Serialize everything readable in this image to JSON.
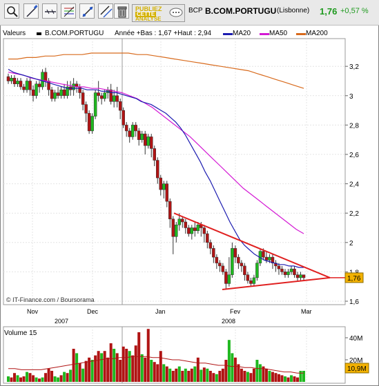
{
  "toolbar": {
    "publiez_line1": "PUBLIEZ",
    "publiez_line2": "CETTE",
    "publiez_line3": "ANALYSE"
  },
  "header": {
    "ticker": "BCP",
    "name": "B.COM.PORTUGU",
    "exchange": "(Lisbonne)",
    "price": "1,76",
    "change": "+0,57 %"
  },
  "legend": {
    "label": "Valeurs",
    "series": "B.COM.PORTUGU",
    "range": "Année +Bas : 1,67 +Haut : 2,94",
    "ma20": "MA20",
    "ma50": "MA50",
    "ma200": "MA200"
  },
  "colors": {
    "up": "#1fb81f",
    "down": "#b01414",
    "ma20": "#1c1cb0",
    "ma50": "#d419d4",
    "ma200": "#d86a1c",
    "trend": "#e02020",
    "price_tag": "#f3b200"
  },
  "copyright": "© IT-Finance.com / Boursorama",
  "price_tag": "1,76",
  "volume": {
    "label": "Volume 15",
    "tag": "10,9M",
    "ticks": [
      "40M",
      "20M"
    ]
  },
  "chart_data": {
    "type": "candlestick",
    "title": "B.COM.PORTUGU",
    "ylim": [
      1.6,
      3.35
    ],
    "yticks": [
      "3,2",
      "3",
      "2,8",
      "2,6",
      "2,4",
      "2,2",
      "2",
      "1,8",
      "1,6"
    ],
    "ytick_values": [
      3.2,
      3.0,
      2.8,
      2.6,
      2.4,
      2.2,
      2.0,
      1.8,
      1.6
    ],
    "xticks": [
      "Nov",
      "Dec",
      "Jan",
      "Fev",
      "Mar"
    ],
    "xticks_year": [
      "2007",
      "2008"
    ],
    "candles": [
      [
        3.13,
        3.1,
        3.15,
        3.08
      ],
      [
        3.1,
        3.12,
        3.14,
        3.08
      ],
      [
        3.12,
        3.08,
        3.14,
        3.06
      ],
      [
        3.08,
        3.1,
        3.12,
        3.06
      ],
      [
        3.1,
        3.06,
        3.12,
        3.04
      ],
      [
        3.06,
        3.04,
        3.08,
        3.02
      ],
      [
        3.04,
        3.1,
        3.12,
        3.02
      ],
      [
        3.1,
        3.04,
        3.12,
        3.0
      ],
      [
        3.04,
        3.0,
        3.07,
        2.96
      ],
      [
        3.0,
        3.08,
        3.1,
        2.98
      ],
      [
        3.08,
        3.06,
        3.1,
        3.02
      ],
      [
        3.06,
        3.16,
        3.18,
        3.04
      ],
      [
        3.16,
        3.1,
        3.19,
        3.06
      ],
      [
        3.1,
        3.04,
        3.12,
        3.0
      ],
      [
        3.04,
        2.98,
        3.06,
        2.96
      ],
      [
        2.98,
        3.02,
        3.04,
        2.96
      ],
      [
        3.02,
        3.0,
        3.06,
        2.98
      ],
      [
        3.0,
        3.04,
        3.06,
        2.98
      ],
      [
        3.04,
        3.0,
        3.08,
        2.98
      ],
      [
        3.0,
        3.06,
        3.1,
        2.98
      ],
      [
        3.06,
        3.04,
        3.1,
        3.0
      ],
      [
        3.04,
        3.08,
        3.12,
        3.0
      ],
      [
        3.08,
        3.06,
        3.1,
        3.02
      ],
      [
        3.06,
        3.02,
        3.08,
        2.98
      ],
      [
        3.02,
        2.94,
        3.04,
        2.9
      ],
      [
        2.94,
        2.88,
        2.96,
        2.82
      ],
      [
        2.88,
        2.76,
        2.9,
        2.74
      ],
      [
        2.76,
        2.86,
        2.88,
        2.74
      ],
      [
        2.86,
        3.02,
        3.04,
        2.84
      ],
      [
        3.02,
        3.0,
        3.1,
        2.96
      ],
      [
        3.0,
        2.98,
        3.02,
        2.94
      ],
      [
        2.98,
        3.02,
        3.04,
        2.96
      ],
      [
        3.02,
        3.04,
        3.06,
        2.98
      ],
      [
        3.04,
        2.96,
        3.08,
        2.94
      ],
      [
        2.96,
        3.0,
        3.04,
        2.92
      ],
      [
        3.0,
        2.96,
        3.06,
        2.92
      ],
      [
        2.96,
        2.9,
        2.98,
        2.84
      ],
      [
        2.9,
        2.8,
        2.92,
        2.78
      ],
      [
        2.8,
        2.76,
        2.82,
        2.72
      ],
      [
        2.76,
        2.72,
        2.78,
        2.68
      ],
      [
        2.72,
        2.8,
        2.82,
        2.7
      ],
      [
        2.8,
        2.76,
        2.82,
        2.72
      ],
      [
        2.76,
        2.7,
        2.78,
        2.66
      ],
      [
        2.7,
        2.74,
        2.76,
        2.68
      ],
      [
        2.74,
        2.66,
        2.76,
        2.6
      ],
      [
        2.66,
        2.72,
        2.74,
        2.64
      ],
      [
        2.72,
        2.64,
        2.74,
        2.58
      ],
      [
        2.64,
        2.56,
        2.66,
        2.52
      ],
      [
        2.56,
        2.44,
        2.58,
        2.4
      ],
      [
        2.44,
        2.36,
        2.46,
        2.32
      ],
      [
        2.36,
        2.4,
        2.42,
        2.3
      ],
      [
        2.4,
        2.28,
        2.42,
        2.24
      ],
      [
        2.28,
        2.16,
        2.3,
        2.1
      ],
      [
        2.16,
        2.04,
        2.18,
        1.92
      ],
      [
        2.04,
        2.12,
        2.14,
        2.0
      ],
      [
        2.12,
        2.16,
        2.2,
        2.08
      ],
      [
        2.16,
        2.14,
        2.18,
        2.1
      ],
      [
        2.14,
        2.1,
        2.16,
        2.06
      ],
      [
        2.1,
        2.06,
        2.12,
        2.04
      ],
      [
        2.06,
        2.1,
        2.12,
        2.02
      ],
      [
        2.1,
        2.08,
        2.14,
        2.04
      ],
      [
        2.08,
        2.12,
        2.14,
        2.06
      ],
      [
        2.12,
        2.1,
        2.14,
        2.04
      ],
      [
        2.1,
        2.06,
        2.12,
        2.0
      ],
      [
        2.06,
        2.0,
        2.08,
        1.96
      ],
      [
        2.0,
        1.96,
        2.02,
        1.92
      ],
      [
        1.96,
        1.9,
        1.98,
        1.86
      ],
      [
        1.9,
        1.86,
        1.92,
        1.82
      ],
      [
        1.86,
        1.84,
        1.88,
        1.8
      ],
      [
        1.84,
        1.8,
        1.86,
        1.78
      ],
      [
        1.8,
        1.72,
        1.82,
        1.68
      ],
      [
        1.72,
        1.78,
        1.9,
        1.7
      ],
      [
        1.78,
        1.96,
        2.0,
        1.76
      ],
      [
        1.96,
        1.9,
        1.98,
        1.86
      ],
      [
        1.9,
        1.86,
        1.92,
        1.82
      ],
      [
        1.86,
        1.84,
        1.88,
        1.8
      ],
      [
        1.84,
        1.78,
        1.86,
        1.74
      ],
      [
        1.78,
        1.74,
        1.8,
        1.72
      ],
      [
        1.74,
        1.72,
        1.76,
        1.7
      ],
      [
        1.72,
        1.76,
        1.78,
        1.7
      ],
      [
        1.76,
        1.86,
        1.88,
        1.74
      ],
      [
        1.86,
        1.94,
        1.96,
        1.84
      ],
      [
        1.94,
        1.9,
        1.96,
        1.88
      ],
      [
        1.9,
        1.88,
        1.94,
        1.86
      ],
      [
        1.88,
        1.9,
        1.92,
        1.86
      ],
      [
        1.9,
        1.86,
        1.92,
        1.82
      ],
      [
        1.86,
        1.84,
        1.88,
        1.8
      ],
      [
        1.84,
        1.82,
        1.86,
        1.78
      ],
      [
        1.82,
        1.8,
        1.84,
        1.78
      ],
      [
        1.8,
        1.78,
        1.82,
        1.76
      ],
      [
        1.78,
        1.8,
        1.82,
        1.76
      ],
      [
        1.8,
        1.82,
        1.84,
        1.78
      ],
      [
        1.82,
        1.78,
        1.84,
        1.76
      ],
      [
        1.78,
        1.76,
        1.8,
        1.74
      ],
      [
        1.76,
        1.78,
        1.8,
        1.74
      ],
      [
        1.78,
        1.76,
        1.78,
        1.74
      ]
    ],
    "ma20": [
      3.18,
      3.16,
      3.15,
      3.14,
      3.13,
      3.12,
      3.11,
      3.1,
      3.09,
      3.08,
      3.07,
      3.06,
      3.05,
      3.05,
      3.05,
      3.05,
      3.04,
      3.04,
      3.04,
      3.03,
      3.03,
      3.02,
      3.02,
      3.01,
      3.0,
      2.99,
      2.98,
      2.96,
      2.95,
      2.94,
      2.92,
      2.9,
      2.88,
      2.85,
      2.82,
      2.78,
      2.73,
      2.67,
      2.61,
      2.55,
      2.48,
      2.42,
      2.35,
      2.28,
      2.21,
      2.14,
      2.08,
      2.02,
      1.98,
      1.95,
      1.92,
      1.9,
      1.88,
      1.87,
      1.86,
      1.85,
      1.85,
      1.84,
      1.84,
      1.83,
      1.83
    ],
    "ma50": [
      3.16,
      3.15,
      3.14,
      3.12,
      3.11,
      3.1,
      3.09,
      3.08,
      3.07,
      3.06,
      3.06,
      3.05,
      3.05,
      3.04,
      3.03,
      3.02,
      3.0,
      2.98,
      2.95,
      2.92,
      2.88,
      2.84,
      2.8,
      2.76,
      2.72,
      2.67,
      2.62,
      2.57,
      2.52,
      2.47,
      2.42,
      2.37,
      2.33,
      2.29,
      2.25,
      2.21,
      2.17,
      2.13,
      2.09,
      2.06
    ],
    "ma200": [
      3.25,
      3.25,
      3.26,
      3.26,
      3.27,
      3.27,
      3.28,
      3.28,
      3.28,
      3.29,
      3.29,
      3.29,
      3.29,
      3.29,
      3.28,
      3.28,
      3.27,
      3.26,
      3.25,
      3.24,
      3.23,
      3.22,
      3.21,
      3.2,
      3.19,
      3.18,
      3.17,
      3.15,
      3.13,
      3.11,
      3.09,
      3.07,
      3.05
    ],
    "trendlines": [
      {
        "from": [
          2.2,
          "mid-Jan"
        ],
        "to": [
          1.75,
          "late-Mar"
        ]
      },
      {
        "from": [
          1.68,
          "late-Jan"
        ],
        "to": [
          1.75,
          "late-Mar"
        ]
      }
    ],
    "volume_ticks": [
      "40M",
      "20M"
    ],
    "volume_ylim": [
      0,
      50
    ],
    "volume": [
      [
        5,
        "u"
      ],
      [
        4,
        "d"
      ],
      [
        8,
        "d"
      ],
      [
        6,
        "u"
      ],
      [
        4,
        "d"
      ],
      [
        5,
        "d"
      ],
      [
        9,
        "u"
      ],
      [
        8,
        "d"
      ],
      [
        6,
        "d"
      ],
      [
        4,
        "u"
      ],
      [
        3,
        "d"
      ],
      [
        4,
        "u"
      ],
      [
        8,
        "d"
      ],
      [
        12,
        "d"
      ],
      [
        10,
        "d"
      ],
      [
        5,
        "u"
      ],
      [
        4,
        "u"
      ],
      [
        6,
        "d"
      ],
      [
        9,
        "u"
      ],
      [
        8,
        "d"
      ],
      [
        11,
        "u"
      ],
      [
        30,
        "d"
      ],
      [
        26,
        "u"
      ],
      [
        17,
        "d"
      ],
      [
        12,
        "u"
      ],
      [
        19,
        "d"
      ],
      [
        22,
        "d"
      ],
      [
        20,
        "u"
      ],
      [
        24,
        "d"
      ],
      [
        28,
        "d"
      ],
      [
        26,
        "u"
      ],
      [
        28,
        "d"
      ],
      [
        22,
        "d"
      ],
      [
        35,
        "d"
      ],
      [
        30,
        "u"
      ],
      [
        26,
        "d"
      ],
      [
        20,
        "d"
      ],
      [
        32,
        "d"
      ],
      [
        30,
        "d"
      ],
      [
        28,
        "u"
      ],
      [
        24,
        "d"
      ],
      [
        33,
        "d"
      ],
      [
        45,
        "d"
      ],
      [
        25,
        "u"
      ],
      [
        22,
        "d"
      ],
      [
        48,
        "d"
      ],
      [
        20,
        "u"
      ],
      [
        18,
        "d"
      ],
      [
        16,
        "d"
      ],
      [
        28,
        "d"
      ],
      [
        16,
        "u"
      ],
      [
        14,
        "d"
      ],
      [
        12,
        "u"
      ],
      [
        10,
        "d"
      ],
      [
        12,
        "d"
      ],
      [
        14,
        "u"
      ],
      [
        10,
        "d"
      ],
      [
        12,
        "u"
      ],
      [
        10,
        "d"
      ],
      [
        12,
        "d"
      ],
      [
        14,
        "u"
      ],
      [
        22,
        "d"
      ],
      [
        11,
        "u"
      ],
      [
        13,
        "d"
      ],
      [
        12,
        "u"
      ],
      [
        10,
        "d"
      ],
      [
        8,
        "d"
      ],
      [
        7,
        "u"
      ],
      [
        10,
        "d"
      ],
      [
        12,
        "d"
      ],
      [
        20,
        "d"
      ],
      [
        38,
        "u"
      ],
      [
        26,
        "u"
      ],
      [
        22,
        "d"
      ],
      [
        16,
        "d"
      ],
      [
        12,
        "d"
      ],
      [
        10,
        "d"
      ],
      [
        9,
        "u"
      ],
      [
        8,
        "d"
      ],
      [
        12,
        "d"
      ],
      [
        20,
        "u"
      ],
      [
        16,
        "u"
      ],
      [
        14,
        "d"
      ],
      [
        12,
        "d"
      ],
      [
        10,
        "u"
      ],
      [
        9,
        "d"
      ],
      [
        8,
        "d"
      ],
      [
        7,
        "d"
      ],
      [
        6,
        "d"
      ],
      [
        5,
        "u"
      ],
      [
        4,
        "d"
      ],
      [
        6,
        "u"
      ],
      [
        5,
        "d"
      ],
      [
        4,
        "d"
      ],
      [
        10,
        "u"
      ],
      [
        10,
        "u"
      ]
    ],
    "volume_ma": [
      12,
      12,
      11,
      11,
      11,
      11,
      12,
      13,
      14,
      15,
      16,
      17,
      18,
      19,
      20,
      21,
      21,
      22,
      22,
      23,
      23,
      23,
      22,
      22,
      21,
      20,
      20,
      19,
      18,
      17,
      17,
      16,
      15,
      15,
      14,
      14,
      13,
      13,
      12,
      12,
      11,
      10,
      9,
      9,
      8,
      8
    ]
  }
}
